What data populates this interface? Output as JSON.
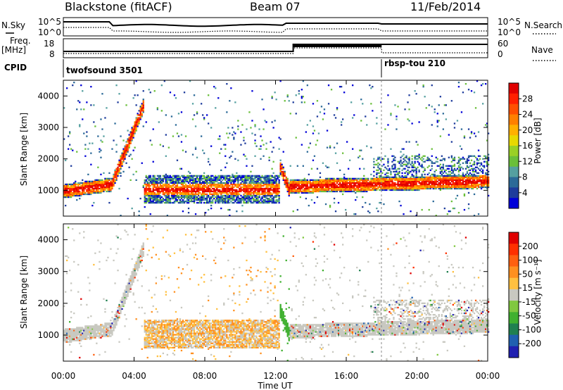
{
  "header": {
    "radar": "Blackstone (fitACF)",
    "beam": "Beam 07",
    "date": "11/Feb/2014"
  },
  "summary_panels": {
    "nsky_label": "N.Sky",
    "nsearch_label": "N.Search",
    "noise_ticks": [
      "10^5",
      "10^0"
    ],
    "freq_label_line1": "Freq.",
    "freq_label_line2": "[MHz]",
    "freq_ticks": [
      "18",
      "8"
    ],
    "nave_label": "Nave",
    "nave_ticks": [
      "60",
      "0"
    ],
    "cpid_label": "CPID",
    "cpid_entries": [
      {
        "name": "twofsound 3501",
        "start": 0.0
      },
      {
        "name": "rbsp-tou 210",
        "start": 18.0
      }
    ]
  },
  "chart_data": [
    {
      "type": "heatmap",
      "name": "power",
      "ylabel": "Slant Range [km]",
      "yticks": [
        1000,
        2000,
        3000,
        4000
      ],
      "ylim": [
        180,
        4500
      ],
      "colorbar_label": "Power [dB]",
      "colorbar_ticks": [
        28,
        24,
        20,
        16,
        12,
        8,
        4
      ],
      "colors": [
        "#0000d8",
        "#1e3c9c",
        "#2c6a98",
        "#55a0a0",
        "#6abf3a",
        "#9ad025",
        "#e8d800",
        "#ffb000",
        "#ff8000",
        "#ff5000",
        "#ff2000",
        "#e00000"
      ]
    },
    {
      "type": "heatmap",
      "name": "velocity",
      "ylabel": "Slant Range [km]",
      "yticks": [
        1000,
        2000,
        3000,
        4000
      ],
      "ylim": [
        180,
        4500
      ],
      "colorbar_label": "Velocity [m s⁻¹]",
      "colorbar_ticks": [
        200,
        100,
        50,
        15,
        -15,
        -50,
        -100,
        -200
      ],
      "colors": [
        "#2020b0",
        "#2060b0",
        "#208050",
        "#40b030",
        "#80c840",
        "#c8c8c0",
        "#ffc040",
        "#ff9020",
        "#ff6010",
        "#ff3000",
        "#e00000"
      ]
    }
  ],
  "time_axis": {
    "xlabel": "Time UT",
    "ticks": [
      "00:00",
      "04:00",
      "08:00",
      "12:00",
      "16:00",
      "20:00",
      "00:00"
    ],
    "xlim": [
      0,
      24
    ]
  }
}
